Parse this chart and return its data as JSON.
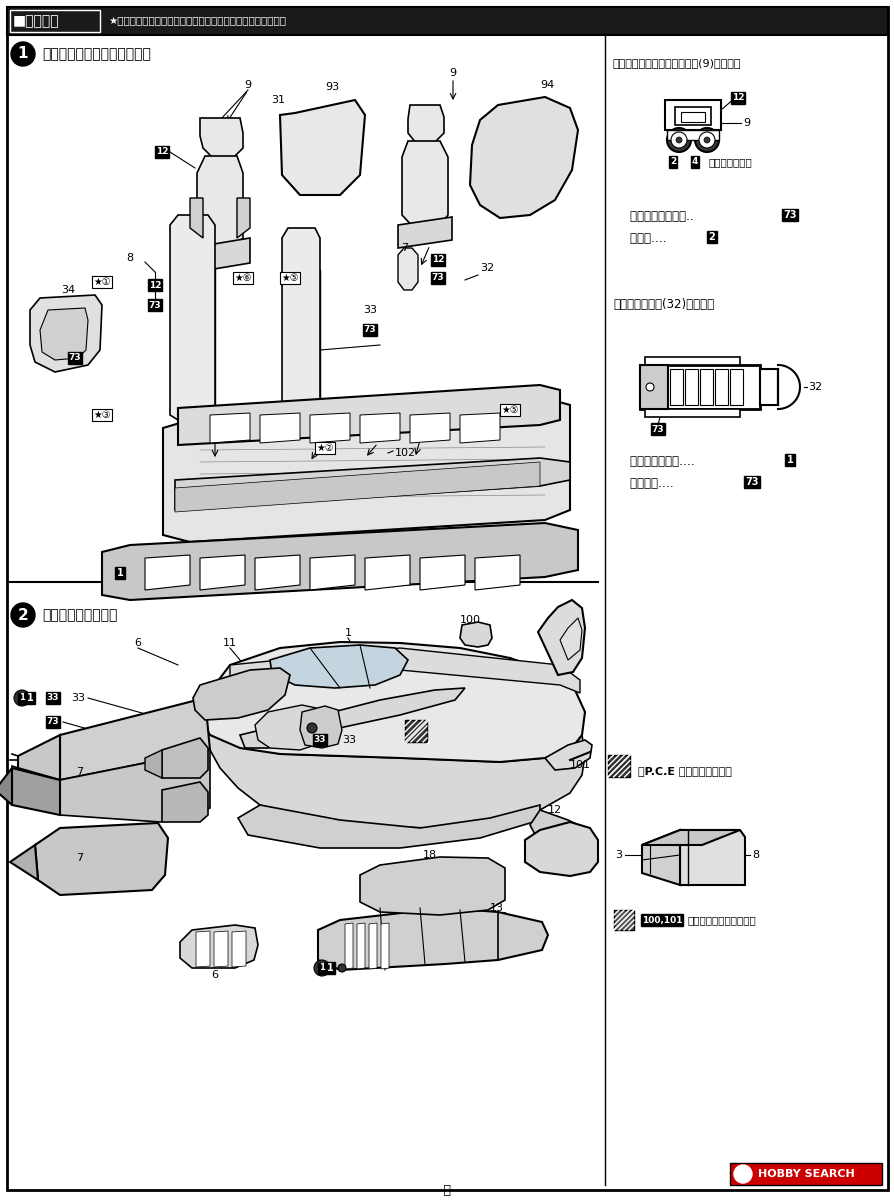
{
  "bg_color": "#ffffff",
  "header_text": "■組み立て",
  "header_note": "★機体の塩装は、裏面の塩装とマーキング図を参照ください。",
  "s1_title": "《コックピットの組み立て》",
  "s2_title": "《胴体の組み立て》",
  "rp1_title": "《フェイスカーテンハンドル(9)の塩装》",
  "check_label": "（チェック柄）",
  "cockpit_inner": "コックピット内側‥ ",
  "control_stick": "操縦棒‥‥ ",
  "rp2_title": "《コックピット(32)の塩装》",
  "intake_inner": "インテイク内側‥‥ ",
  "fuselage_inner": "胴体内側‥‥ ",
  "pce_title": "《P.C.E 扉を開ける場合》",
  "cut_text": "真ん中で切り離します。",
  "footer": "―２―",
  "hobby_search": "HOBBY SEARCH"
}
